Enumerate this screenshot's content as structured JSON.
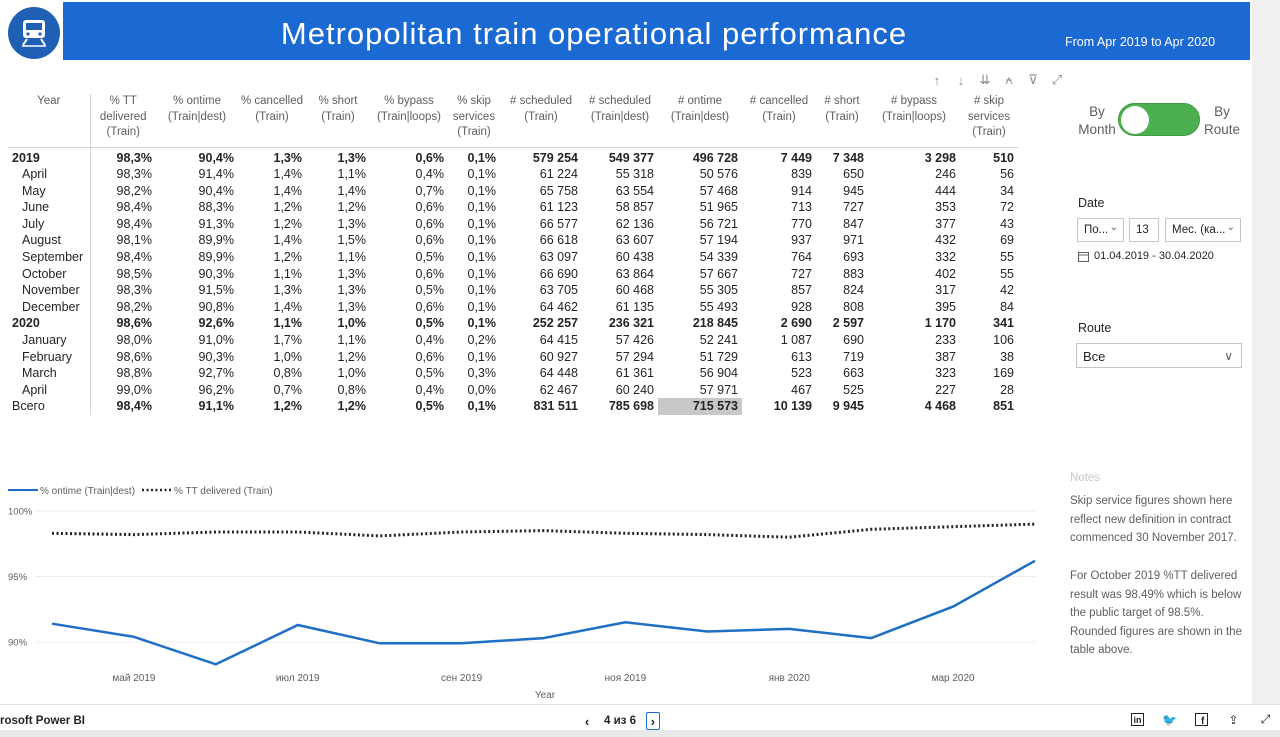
{
  "header": {
    "title": "Metropolitan train operational performance",
    "period": "From Apr 2019 to Apr 2020"
  },
  "table": {
    "columns": [
      "Year",
      "% TT delivered (Train)",
      "% ontime (Train|dest)",
      "% cancelled (Train)",
      "% short (Train)",
      "% bypass (Train|loops)",
      "% skip services (Train)",
      "# scheduled (Train)",
      "# scheduled (Train|dest)",
      "# ontime (Train|dest)",
      "# cancelled (Train)",
      "# short (Train)",
      "# bypass (Train|loops)",
      "# skip services (Train)"
    ],
    "rows": [
      {
        "level": "year",
        "cells": [
          "2019",
          "98,3%",
          "90,4%",
          "1,3%",
          "1,3%",
          "0,6%",
          "0,1%",
          "579 254",
          "549 377",
          "496 728",
          "7 449",
          "7 348",
          "3 298",
          "510"
        ]
      },
      {
        "level": "month",
        "cells": [
          "April",
          "98,3%",
          "91,4%",
          "1,4%",
          "1,1%",
          "0,4%",
          "0,1%",
          "61 224",
          "55 318",
          "50 576",
          "839",
          "650",
          "246",
          "56"
        ]
      },
      {
        "level": "month",
        "cells": [
          "May",
          "98,2%",
          "90,4%",
          "1,4%",
          "1,4%",
          "0,7%",
          "0,1%",
          "65 758",
          "63 554",
          "57 468",
          "914",
          "945",
          "444",
          "34"
        ]
      },
      {
        "level": "month",
        "cells": [
          "June",
          "98,4%",
          "88,3%",
          "1,2%",
          "1,2%",
          "0,6%",
          "0,1%",
          "61 123",
          "58 857",
          "51 965",
          "713",
          "727",
          "353",
          "72"
        ]
      },
      {
        "level": "month",
        "cells": [
          "July",
          "98,4%",
          "91,3%",
          "1,2%",
          "1,3%",
          "0,6%",
          "0,1%",
          "66 577",
          "62 136",
          "56 721",
          "770",
          "847",
          "377",
          "43"
        ]
      },
      {
        "level": "month",
        "cells": [
          "August",
          "98,1%",
          "89,9%",
          "1,4%",
          "1,5%",
          "0,6%",
          "0,1%",
          "66 618",
          "63 607",
          "57 194",
          "937",
          "971",
          "432",
          "69"
        ]
      },
      {
        "level": "month",
        "cells": [
          "September",
          "98,4%",
          "89,9%",
          "1,2%",
          "1,1%",
          "0,5%",
          "0,1%",
          "63 097",
          "60 438",
          "54 339",
          "764",
          "693",
          "332",
          "55"
        ]
      },
      {
        "level": "month",
        "cells": [
          "October",
          "98,5%",
          "90,3%",
          "1,1%",
          "1,3%",
          "0,6%",
          "0,1%",
          "66 690",
          "63 864",
          "57 667",
          "727",
          "883",
          "402",
          "55"
        ]
      },
      {
        "level": "month",
        "cells": [
          "November",
          "98,3%",
          "91,5%",
          "1,3%",
          "1,3%",
          "0,5%",
          "0,1%",
          "63 705",
          "60 468",
          "55 305",
          "857",
          "824",
          "317",
          "42"
        ]
      },
      {
        "level": "month",
        "cells": [
          "December",
          "98,2%",
          "90,8%",
          "1,4%",
          "1,3%",
          "0,6%",
          "0,1%",
          "64 462",
          "61 135",
          "55 493",
          "928",
          "808",
          "395",
          "84"
        ]
      },
      {
        "level": "year",
        "cells": [
          "2020",
          "98,6%",
          "92,6%",
          "1,1%",
          "1,0%",
          "0,5%",
          "0,1%",
          "252 257",
          "236 321",
          "218 845",
          "2 690",
          "2 597",
          "1 170",
          "341"
        ]
      },
      {
        "level": "month",
        "cells": [
          "January",
          "98,0%",
          "91,0%",
          "1,7%",
          "1,1%",
          "0,4%",
          "0,2%",
          "64 415",
          "57 426",
          "52 241",
          "1 087",
          "690",
          "233",
          "106"
        ]
      },
      {
        "level": "month",
        "cells": [
          "February",
          "98,6%",
          "90,3%",
          "1,0%",
          "1,2%",
          "0,6%",
          "0,1%",
          "60 927",
          "57 294",
          "51 729",
          "613",
          "719",
          "387",
          "38"
        ]
      },
      {
        "level": "month",
        "cells": [
          "March",
          "98,8%",
          "92,7%",
          "0,8%",
          "1,0%",
          "0,5%",
          "0,3%",
          "64 448",
          "61 361",
          "56 904",
          "523",
          "663",
          "323",
          "169"
        ]
      },
      {
        "level": "month",
        "cells": [
          "April",
          "99,0%",
          "96,2%",
          "0,7%",
          "0,8%",
          "0,4%",
          "0,0%",
          "62 467",
          "60 240",
          "57 971",
          "467",
          "525",
          "227",
          "28"
        ]
      },
      {
        "level": "total",
        "cells": [
          "Всего",
          "98,4%",
          "91,1%",
          "1,2%",
          "1,2%",
          "0,5%",
          "0,1%",
          "831 511",
          "785 698",
          "715 573",
          "10 139",
          "9 945",
          "4 468",
          "851"
        ]
      }
    ]
  },
  "toggle": {
    "left_label": "By Month",
    "right_label": "By Route"
  },
  "date_slicer": {
    "label": "Date",
    "mode_value": "По...",
    "number_value": "13",
    "unit_value": "Мес. (ка...",
    "range_text": "01.04.2019 - 30.04.2020"
  },
  "route_slicer": {
    "label": "Route",
    "value": "Все"
  },
  "notes": {
    "title": "Notes",
    "paragraph1": "Skip service figures shown here reflect new definition in contract commenced 30 November 2017.",
    "paragraph2": "For October 2019 %TT delivered result was 98.49% which is below the public target of 98.5%. Rounded figures are shown in the table above."
  },
  "chart_data": {
    "type": "line",
    "x": [
      "Apr 2019",
      "May 2019",
      "Jun 2019",
      "Jul 2019",
      "Aug 2019",
      "Sep 2019",
      "Oct 2019",
      "Nov 2019",
      "Dec 2019",
      "Jan 2020",
      "Feb 2020",
      "Mar 2020",
      "Apr 2020"
    ],
    "series": [
      {
        "name": "% ontime (Train|dest)",
        "style": "solid",
        "color": "#1f6fc5",
        "values": [
          91.4,
          90.4,
          88.3,
          91.3,
          89.9,
          89.9,
          90.3,
          91.5,
          90.8,
          91.0,
          90.3,
          92.7,
          96.2
        ]
      },
      {
        "name": "% TT delivered (Train)",
        "style": "dotted",
        "color": "#252423",
        "values": [
          98.3,
          98.2,
          98.4,
          98.4,
          98.1,
          98.4,
          98.5,
          98.3,
          98.2,
          98.0,
          98.6,
          98.8,
          99.0
        ]
      }
    ],
    "y_ticks": [
      "100%",
      "95%",
      "90%"
    ],
    "x_tick_labels": [
      "май 2019",
      "июл 2019",
      "сен 2019",
      "ноя 2019",
      "янв 2020",
      "мар 2020"
    ],
    "xlabel": "Year",
    "ylim": [
      88,
      100
    ]
  },
  "footer": {
    "brand": "rosoft Power BI",
    "page_indicator": "4 из 6"
  },
  "colors": {
    "header_blue": "#1b6ad3",
    "toggle_green": "#4caf50",
    "highlight_gray": "#c8c8c8"
  }
}
